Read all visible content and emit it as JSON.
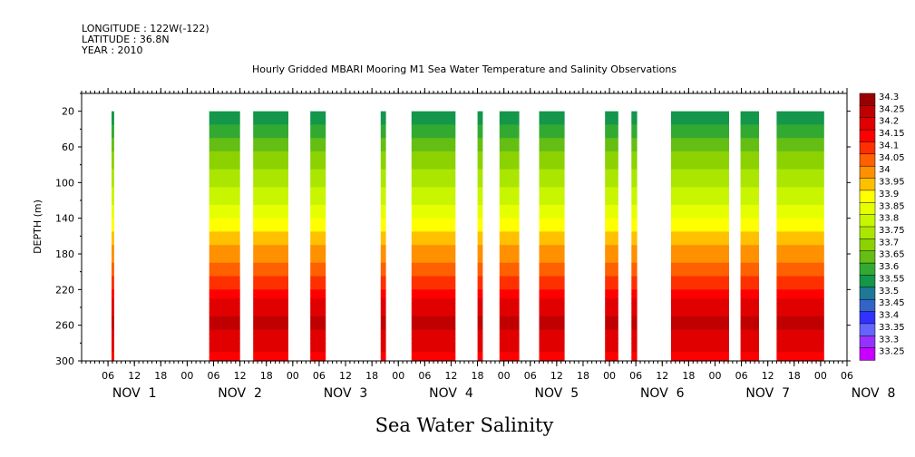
{
  "header": {
    "longitude": "LONGITUDE : 122W(-122)",
    "latitude": "LATITUDE : 36.8N",
    "year": "YEAR : 2010",
    "title": "Hourly Gridded MBARI Mooring M1 Sea Water Temperature and Salinity Observations"
  },
  "chart_data": {
    "type": "heatmap",
    "title": "Hourly Gridded MBARI Mooring M1 Sea Water Temperature and Salinity Observations",
    "variable_label": "Sea Water Salinity",
    "ylabel": "DEPTH (m)",
    "ylim": [
      300,
      0
    ],
    "y_ticks": [
      20,
      60,
      100,
      140,
      180,
      220,
      260,
      300
    ],
    "x_range_hours": [
      0,
      174
    ],
    "x_hour_ticks": [
      "06",
      "12",
      "18",
      "00",
      "06",
      "12",
      "18",
      "00",
      "06",
      "12",
      "18",
      "00",
      "06",
      "12",
      "18",
      "00",
      "06",
      "12",
      "18",
      "00",
      "06",
      "12",
      "18",
      "00",
      "06",
      "12",
      "18",
      "00",
      "06"
    ],
    "x_day_labels": [
      "NOV 1",
      "NOV 2",
      "NOV 3",
      "NOV 4",
      "NOV 5",
      "NOV 6",
      "NOV 7",
      "NOV 8"
    ],
    "colorbar_levels": [
      "34.3",
      "34.25",
      "34.2",
      "34.15",
      "34.1",
      "34.05",
      "34",
      "33.95",
      "33.9",
      "33.85",
      "33.8",
      "33.75",
      "33.7",
      "33.65",
      "33.6",
      "33.55",
      "33.5",
      "33.45",
      "33.4",
      "33.35",
      "33.3",
      "33.25"
    ],
    "colorbar_colors": [
      "#9b0000",
      "#c00000",
      "#e00000",
      "#ff0000",
      "#ff3000",
      "#ff6000",
      "#ff9000",
      "#ffc000",
      "#ffff00",
      "#e6ff00",
      "#c8f500",
      "#aae600",
      "#8cd200",
      "#64be14",
      "#32aa32",
      "#14964b",
      "#1e7896",
      "#3264c8",
      "#3232ff",
      "#6464ff",
      "#9632ff",
      "#c800ff"
    ],
    "data_segments_hours": [
      [
        6.8,
        7.4
      ],
      [
        29,
        36
      ],
      [
        39,
        47
      ],
      [
        52,
        55.5
      ],
      [
        68,
        69.2
      ],
      [
        75,
        85
      ],
      [
        90,
        91.2
      ],
      [
        95,
        99.5
      ],
      [
        104,
        109.8
      ],
      [
        119,
        122
      ],
      [
        125,
        126.3
      ],
      [
        134,
        147.2
      ],
      [
        149.8,
        154
      ],
      [
        158,
        168.8
      ]
    ],
    "salinity_profile": {
      "depths": [
        20,
        40,
        60,
        80,
        100,
        120,
        140,
        160,
        180,
        200,
        220,
        240,
        260,
        280,
        300
      ],
      "values": [
        33.55,
        33.62,
        33.68,
        33.74,
        33.78,
        33.84,
        33.9,
        33.98,
        34.02,
        34.08,
        34.16,
        34.24,
        34.26,
        34.22,
        34.18
      ]
    }
  }
}
